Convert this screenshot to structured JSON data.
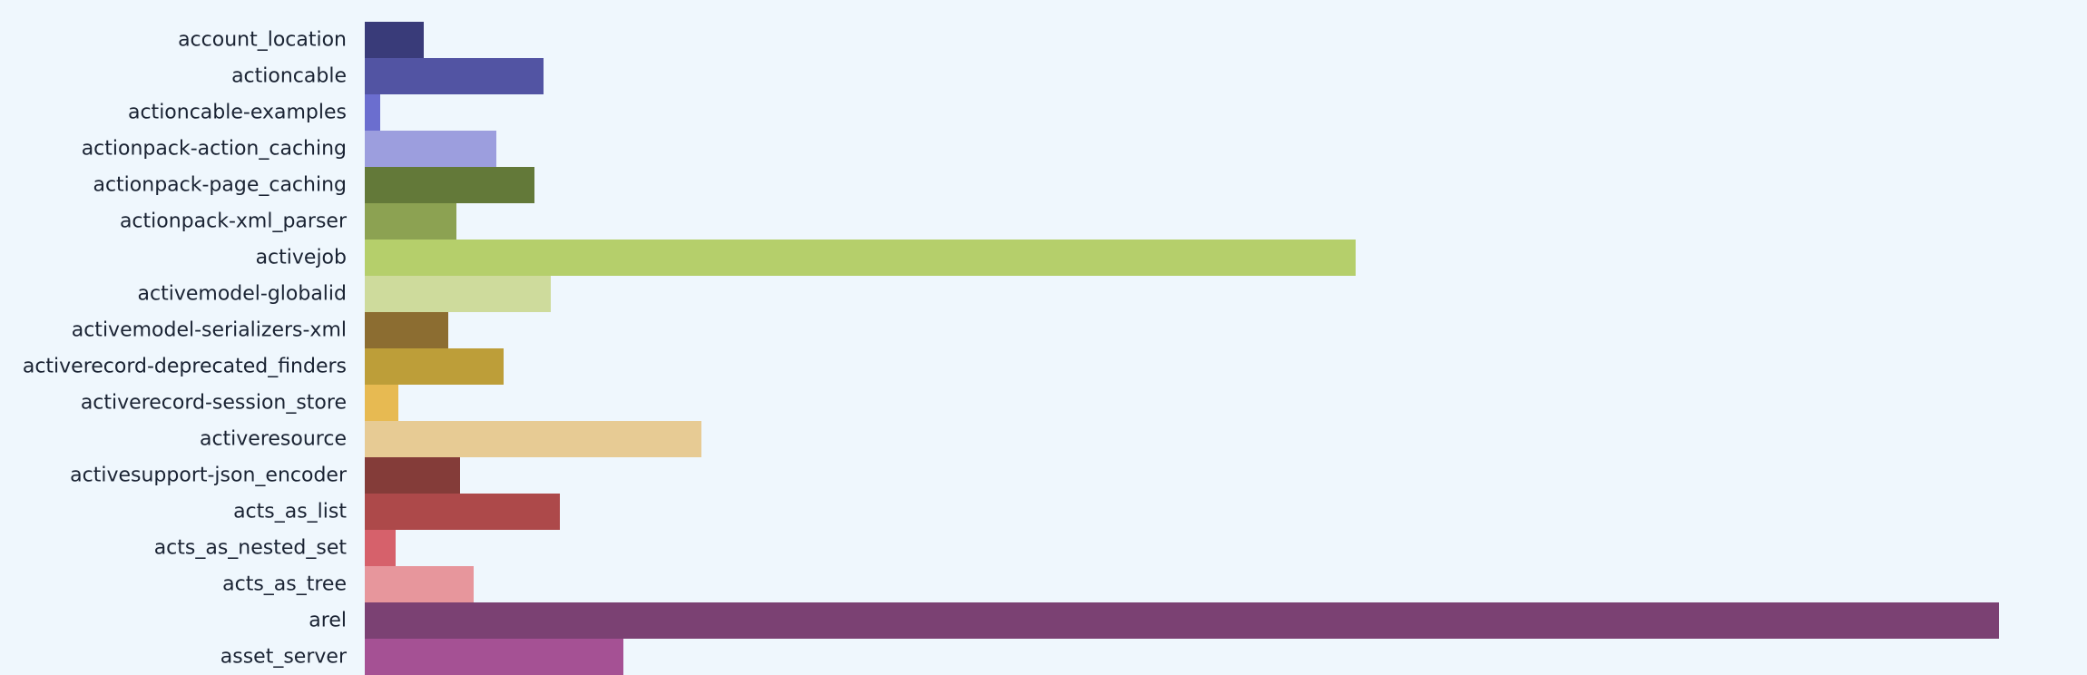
{
  "chart_data": {
    "type": "bar",
    "orientation": "horizontal",
    "categories": [
      "account_location",
      "actioncable",
      "actioncable-examples",
      "actionpack-action_caching",
      "actionpack-page_caching",
      "actionpack-xml_parser",
      "activejob",
      "activemodel-globalid",
      "activemodel-serializers-xml",
      "activerecord-deprecated_finders",
      "activerecord-session_store",
      "activeresource",
      "activesupport-json_encoder",
      "acts_as_list",
      "acts_as_nested_set",
      "acts_as_tree",
      "arel",
      "asset_server"
    ],
    "values": [
      65,
      197,
      17,
      145,
      187,
      101,
      1092,
      205,
      92,
      153,
      37,
      371,
      105,
      215,
      34,
      120,
      1801,
      285
    ],
    "colors": [
      "#393b79",
      "#5254a3",
      "#6b6ecf",
      "#9c9ede",
      "#637939",
      "#8ca252",
      "#b5cf6b",
      "#cedb9c",
      "#8c6d31",
      "#bd9e39",
      "#e7ba52",
      "#e7cb94",
      "#843c39",
      "#ad494a",
      "#d6616b",
      "#e7969c",
      "#7b4173",
      "#a55194"
    ],
    "xlim": [
      0,
      1850
    ],
    "grid": false,
    "legend": "none",
    "title": "",
    "xlabel": "",
    "ylabel": ""
  }
}
